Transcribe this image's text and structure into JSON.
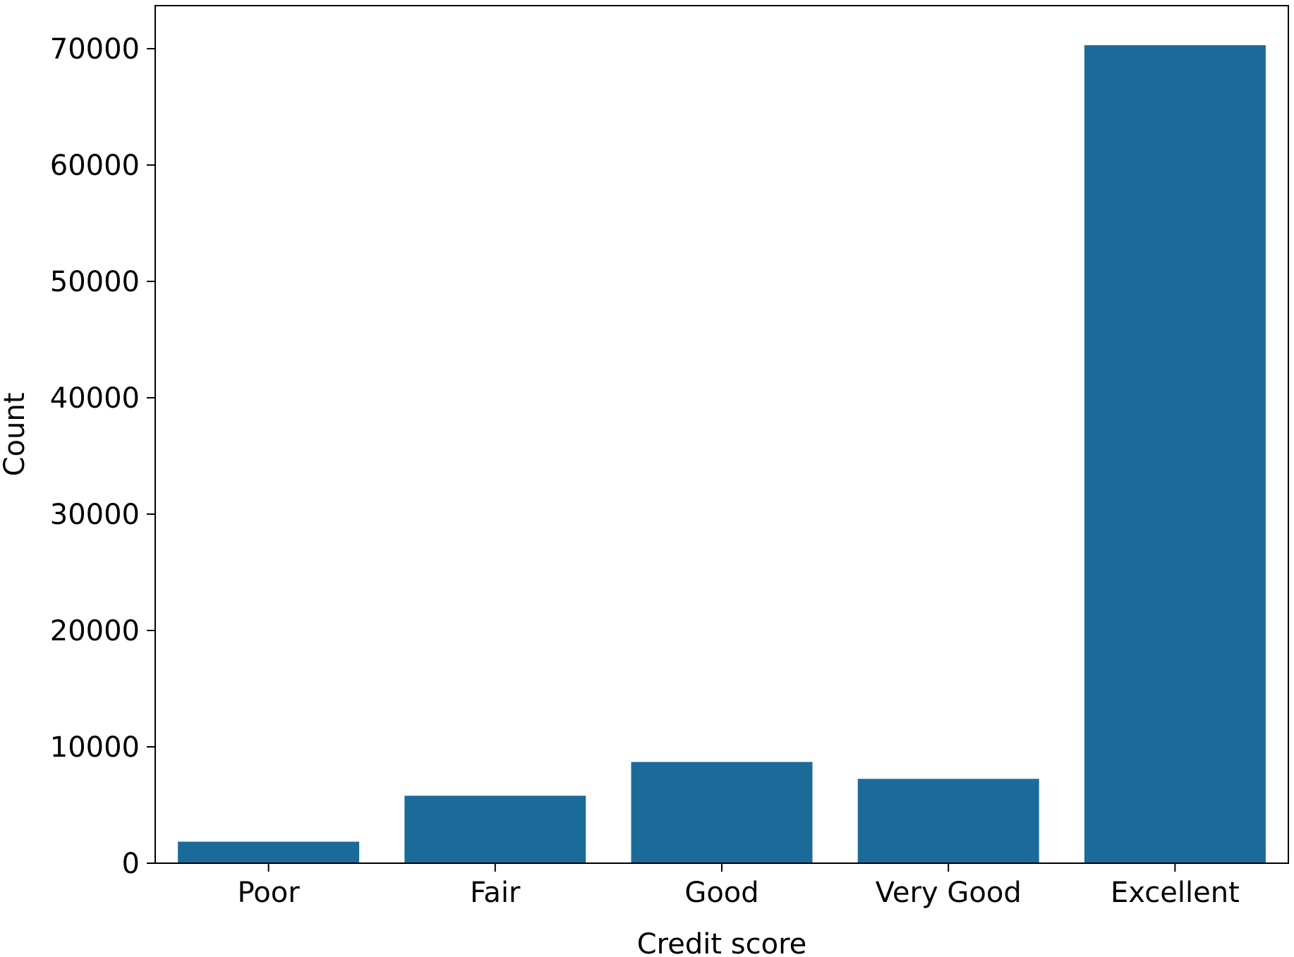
{
  "chart_data": {
    "type": "bar",
    "title": "",
    "xlabel": "Credit score",
    "ylabel": "Count",
    "categories": [
      "Poor",
      "Fair",
      "Good",
      "Very Good",
      "Excellent"
    ],
    "values": [
      1850,
      5800,
      8700,
      7250,
      70300
    ],
    "ylim": [
      0,
      73700
    ],
    "yticks": [
      0,
      10000,
      20000,
      30000,
      40000,
      50000,
      60000,
      70000
    ],
    "grid": false,
    "legend": "none",
    "bar_color": "#1a6b9a"
  }
}
